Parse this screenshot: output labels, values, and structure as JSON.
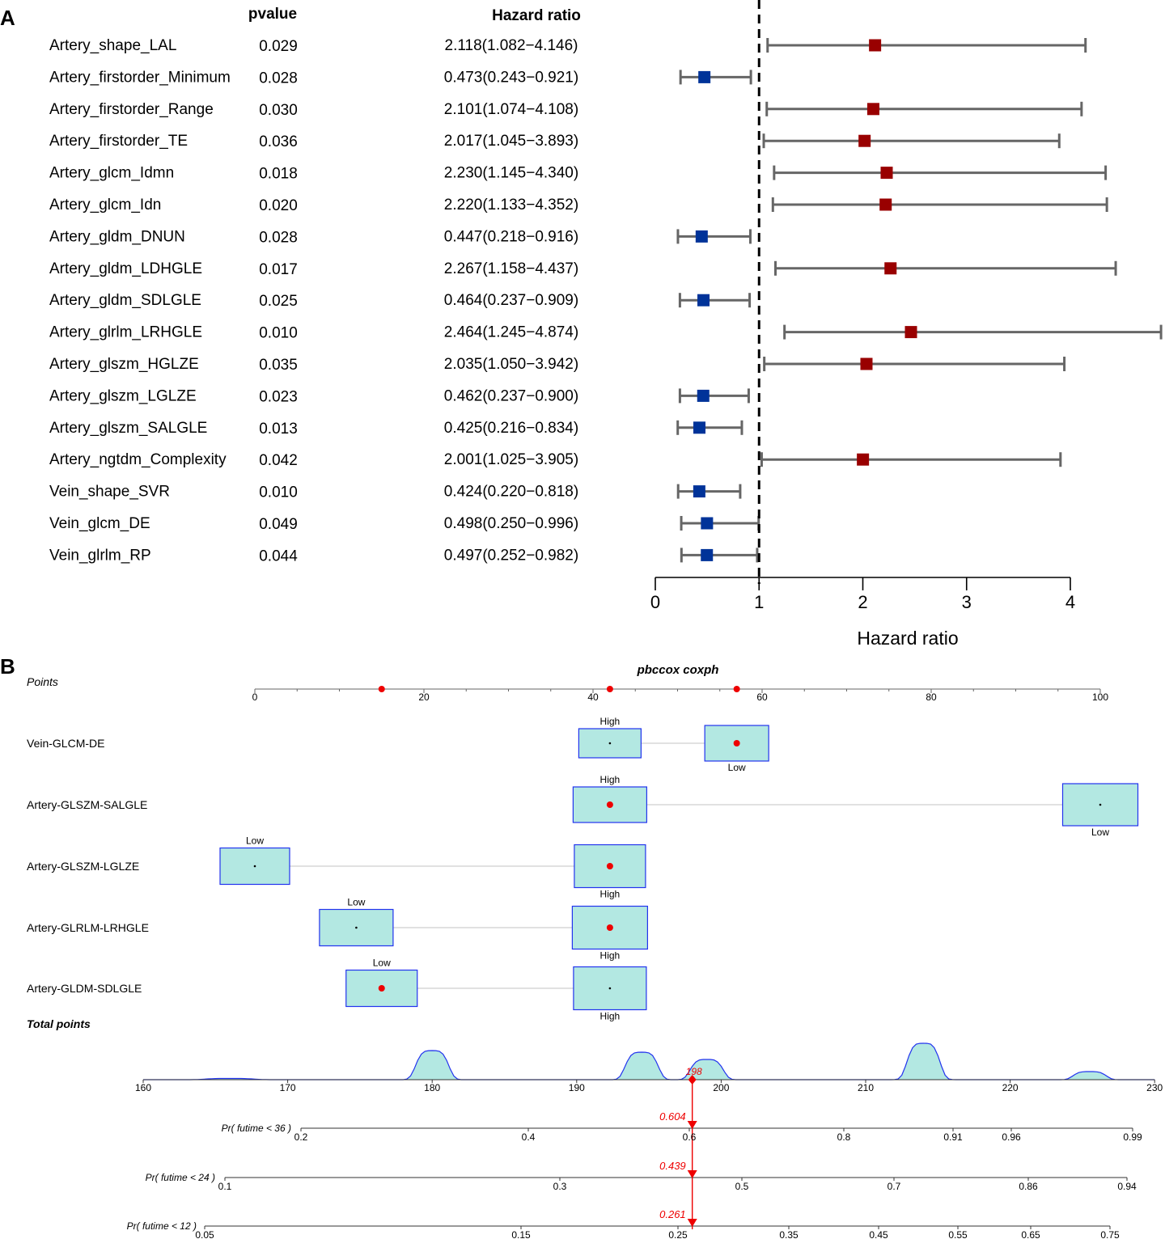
{
  "panel_a": {
    "label": "A",
    "col_pvalue": "pvalue",
    "col_hr": "Hazard ratio",
    "xlabel": "Hazard ratio",
    "xticks": [
      "0",
      "1",
      "2",
      "3",
      "4"
    ],
    "colors": {
      "risk": "#990000",
      "protective": "#003399",
      "ci_line": "#666666"
    }
  },
  "panel_b": {
    "label": "B",
    "title": "pbccox coxph",
    "points_label": "Points",
    "total_points_label": "Total points",
    "colors": {
      "box_fill": "#b3e8e2",
      "box_stroke": "#2233ee",
      "marker": "#ee0000"
    },
    "points_ticks": [
      "0",
      "20",
      "40",
      "60",
      "80",
      "100"
    ],
    "total_ticks": [
      "160",
      "170",
      "180",
      "190",
      "200",
      "210",
      "220",
      "230"
    ],
    "total_value": "198"
  },
  "chart_data": [
    {
      "type": "forest",
      "title": "",
      "xlabel": "Hazard ratio",
      "xlim": [
        0,
        4
      ],
      "reference_line": 1,
      "columns": [
        "pvalue",
        "Hazard ratio"
      ],
      "rows": [
        {
          "name": "Artery_shape_LAL",
          "pvalue": "0.029",
          "hr_text": "2.118(1.082−4.146)",
          "hr": 2.118,
          "lo": 1.082,
          "hi": 4.146
        },
        {
          "name": "Artery_firstorder_Minimum",
          "pvalue": "0.028",
          "hr_text": "0.473(0.243−0.921)",
          "hr": 0.473,
          "lo": 0.243,
          "hi": 0.921
        },
        {
          "name": "Artery_firstorder_Range",
          "pvalue": "0.030",
          "hr_text": "2.101(1.074−4.108)",
          "hr": 2.101,
          "lo": 1.074,
          "hi": 4.108
        },
        {
          "name": "Artery_firstorder_TE",
          "pvalue": "0.036",
          "hr_text": "2.017(1.045−3.893)",
          "hr": 2.017,
          "lo": 1.045,
          "hi": 3.893
        },
        {
          "name": "Artery_glcm_Idmn",
          "pvalue": "0.018",
          "hr_text": "2.230(1.145−4.340)",
          "hr": 2.23,
          "lo": 1.145,
          "hi": 4.34
        },
        {
          "name": "Artery_glcm_Idn",
          "pvalue": "0.020",
          "hr_text": "2.220(1.133−4.352)",
          "hr": 2.22,
          "lo": 1.133,
          "hi": 4.352
        },
        {
          "name": "Artery_gldm_DNUN",
          "pvalue": "0.028",
          "hr_text": "0.447(0.218−0.916)",
          "hr": 0.447,
          "lo": 0.218,
          "hi": 0.916
        },
        {
          "name": "Artery_gldm_LDHGLE",
          "pvalue": "0.017",
          "hr_text": "2.267(1.158−4.437)",
          "hr": 2.267,
          "lo": 1.158,
          "hi": 4.437
        },
        {
          "name": "Artery_gldm_SDLGLE",
          "pvalue": "0.025",
          "hr_text": "0.464(0.237−0.909)",
          "hr": 0.464,
          "lo": 0.237,
          "hi": 0.909
        },
        {
          "name": "Artery_glrlm_LRHGLE",
          "pvalue": "0.010",
          "hr_text": "2.464(1.245−4.874)",
          "hr": 2.464,
          "lo": 1.245,
          "hi": 4.874
        },
        {
          "name": "Artery_glszm_HGLZE",
          "pvalue": "0.035",
          "hr_text": "2.035(1.050−3.942)",
          "hr": 2.035,
          "lo": 1.05,
          "hi": 3.942
        },
        {
          "name": "Artery_glszm_LGLZE",
          "pvalue": "0.023",
          "hr_text": "0.462(0.237−0.900)",
          "hr": 0.462,
          "lo": 0.237,
          "hi": 0.9
        },
        {
          "name": "Artery_glszm_SALGLE",
          "pvalue": "0.013",
          "hr_text": "0.425(0.216−0.834)",
          "hr": 0.425,
          "lo": 0.216,
          "hi": 0.834
        },
        {
          "name": "Artery_ngtdm_Complexity",
          "pvalue": "0.042",
          "hr_text": "2.001(1.025−3.905)",
          "hr": 2.001,
          "lo": 1.025,
          "hi": 3.905
        },
        {
          "name": "Vein_shape_SVR",
          "pvalue": "0.010",
          "hr_text": "0.424(0.220−0.818)",
          "hr": 0.424,
          "lo": 0.22,
          "hi": 0.818
        },
        {
          "name": "Vein_glcm_DE",
          "pvalue": "0.049",
          "hr_text": "0.498(0.250−0.996)",
          "hr": 0.498,
          "lo": 0.25,
          "hi": 0.996
        },
        {
          "name": "Vein_glrlm_RP",
          "pvalue": "0.044",
          "hr_text": "0.497(0.252−0.982)",
          "hr": 0.497,
          "lo": 0.252,
          "hi": 0.982
        }
      ]
    },
    {
      "type": "nomogram",
      "title": "pbccox coxph",
      "points_axis": {
        "label": "Points",
        "range": [
          0,
          100
        ],
        "ticks": [
          0,
          20,
          40,
          60,
          80,
          100
        ],
        "markers": [
          15,
          42,
          57
        ]
      },
      "variables": [
        {
          "name": "Vein-GLCM-DE",
          "levels": [
            {
              "label": "High",
              "points": 42,
              "selected": false,
              "label_pos": "above"
            },
            {
              "label": "Low",
              "points": 57,
              "selected": true,
              "label_pos": "below"
            }
          ]
        },
        {
          "name": "Artery-GLSZM-SALGLE",
          "levels": [
            {
              "label": "High",
              "points": 42,
              "selected": true,
              "label_pos": "above"
            },
            {
              "label": "Low",
              "points": 100,
              "selected": false,
              "label_pos": "below"
            }
          ]
        },
        {
          "name": "Artery-GLSZM-LGLZE",
          "levels": [
            {
              "label": "Low",
              "points": 0,
              "selected": false,
              "label_pos": "above"
            },
            {
              "label": "High",
              "points": 42,
              "selected": true,
              "label_pos": "below"
            }
          ]
        },
        {
          "name": "Artery-GLRLM-LRHGLE",
          "levels": [
            {
              "label": "Low",
              "points": 12,
              "selected": false,
              "label_pos": "above"
            },
            {
              "label": "High",
              "points": 42,
              "selected": true,
              "label_pos": "below"
            }
          ]
        },
        {
          "name": "Artery-GLDM-SDLGLE",
          "levels": [
            {
              "label": "Low",
              "points": 15,
              "selected": true,
              "label_pos": "above"
            },
            {
              "label": "High",
              "points": 42,
              "selected": false,
              "label_pos": "below"
            }
          ]
        }
      ],
      "total_points": {
        "label": "Total points",
        "range": [
          160,
          230
        ],
        "ticks": [
          160,
          170,
          180,
          190,
          200,
          210,
          220,
          230
        ],
        "value": 198,
        "density": [
          [
            166,
            1.5
          ],
          [
            180,
            36
          ],
          [
            194.5,
            34
          ],
          [
            199,
            25
          ],
          [
            214,
            45
          ],
          [
            225.5,
            10
          ]
        ]
      },
      "probability_axes": [
        {
          "label": "Pr( futime < 36 )",
          "ticks": [
            "0.2",
            "0.4",
            "0.6",
            "0.8",
            "0.91",
            "0.96",
            "0.99"
          ],
          "value": "0.604"
        },
        {
          "label": "Pr( futime < 24 )",
          "ticks": [
            "0.1",
            "0.3",
            "0.5",
            "0.7",
            "0.86",
            "0.94"
          ],
          "value": "0.439"
        },
        {
          "label": "Pr( futime < 12 )",
          "ticks": [
            "0.05",
            "0.15",
            "0.25",
            "0.35",
            "0.45",
            "0.55",
            "0.65",
            "0.75"
          ],
          "value": "0.261"
        }
      ]
    }
  ]
}
